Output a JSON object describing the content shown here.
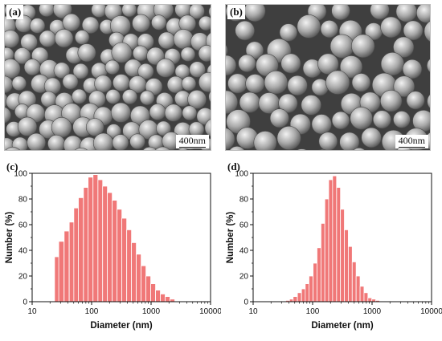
{
  "panels": {
    "a": {
      "label": "(a)",
      "scale": "400nm"
    },
    "b": {
      "label": "(b)",
      "scale": "400nm"
    },
    "c": {
      "label": "(c)"
    },
    "d": {
      "label": "(d)"
    }
  },
  "colors": {
    "bar_fill": "#f07878",
    "bar_stroke": "#ffffff",
    "axis": "#111111",
    "sem_background": "#3f3f3f"
  },
  "chart_data": [
    {
      "panel": "(c)",
      "type": "bar",
      "xlabel": "Diameter (nm)",
      "ylabel": "Number (%)",
      "xscale": "log",
      "xlim": [
        10,
        10000
      ],
      "ylim": [
        0,
        100
      ],
      "xticks": [
        "10",
        "100",
        "1000",
        "10000"
      ],
      "yticks": [
        "0",
        "20",
        "40",
        "60",
        "80",
        "100"
      ],
      "bin_centers": [
        26,
        31,
        38,
        46,
        55,
        66,
        80,
        96,
        116,
        140,
        168,
        202,
        244,
        294,
        354,
        427,
        514,
        619,
        746,
        899,
        1083,
        1305,
        1572,
        1894,
        2282
      ],
      "values": [
        35,
        47,
        55,
        62,
        73,
        81,
        89,
        97,
        99,
        95,
        90,
        85,
        79,
        72,
        65,
        56,
        46,
        37,
        28,
        20,
        14,
        9,
        6,
        4,
        2
      ]
    },
    {
      "panel": "(d)",
      "type": "bar",
      "xlabel": "Diameter (nm)",
      "ylabel": "Number (%)",
      "xscale": "log",
      "xlim": [
        10,
        10000
      ],
      "ylim": [
        0,
        100
      ],
      "xticks": [
        "10",
        "100",
        "1000",
        "10000"
      ],
      "yticks": [
        "0",
        "20",
        "40",
        "60",
        "80",
        "100"
      ],
      "bin_centers": [
        38,
        44,
        51,
        60,
        70,
        81,
        94,
        110,
        128,
        149,
        173,
        201,
        234,
        273,
        317,
        369,
        430,
        500,
        582,
        678,
        789,
        918,
        1069,
        1244
      ],
      "values": [
        1,
        2,
        4,
        7,
        10,
        14,
        20,
        30,
        42,
        61,
        80,
        95,
        98,
        89,
        72,
        56,
        43,
        31,
        20,
        12,
        7,
        3,
        2,
        1
      ]
    }
  ]
}
